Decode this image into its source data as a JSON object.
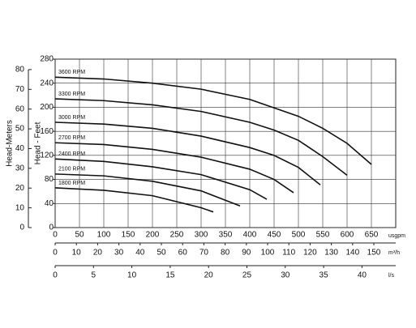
{
  "chart_data": {
    "type": "line",
    "ylabel": "Head - Feet",
    "y2label": "Head-Meters",
    "ylim": [
      0,
      280
    ],
    "yticks": [
      0,
      40,
      80,
      120,
      160,
      200,
      240,
      280
    ],
    "y2lim": [
      0,
      85.3
    ],
    "y2ticks": [
      0,
      10,
      20,
      30,
      40,
      50,
      60,
      70,
      80
    ],
    "xlim": [
      0,
      700
    ],
    "xticks": [
      0,
      50,
      100,
      150,
      200,
      250,
      300,
      350,
      400,
      450,
      500,
      550,
      600,
      650
    ],
    "xunit": "usgpm",
    "x_axes": [
      {
        "unit": "m³/h",
        "xlim": [
          0,
          160.3
        ],
        "xticks": [
          0,
          10,
          20,
          30,
          40,
          50,
          60,
          70,
          80,
          90,
          100,
          110,
          120,
          130,
          140,
          150
        ]
      },
      {
        "unit": "l/s",
        "xlim": [
          0,
          44.4
        ],
        "xticks": [
          0,
          5,
          10,
          15,
          20,
          25,
          30,
          35,
          40
        ]
      }
    ],
    "grid": true,
    "series": [
      {
        "name": "3600 RPM",
        "color": "#111111",
        "x": [
          0,
          100,
          200,
          300,
          400,
          500,
          550,
          600,
          650
        ],
        "values": [
          250,
          247,
          240,
          230,
          213,
          185,
          165,
          140,
          105
        ]
      },
      {
        "name": "3300 RPM",
        "color": "#111111",
        "x": [
          0,
          100,
          200,
          300,
          400,
          450,
          500,
          550,
          600
        ],
        "values": [
          214,
          211,
          204,
          193,
          175,
          162,
          145,
          118,
          87
        ]
      },
      {
        "name": "3000 RPM",
        "color": "#111111",
        "x": [
          0,
          100,
          200,
          300,
          400,
          450,
          500,
          545
        ],
        "values": [
          175,
          172,
          165,
          152,
          133,
          120,
          100,
          71
        ]
      },
      {
        "name": "2700 RPM",
        "color": "#111111",
        "x": [
          0,
          100,
          200,
          300,
          400,
          450,
          490
        ],
        "values": [
          141,
          138,
          130,
          117,
          97,
          80,
          58
        ]
      },
      {
        "name": "2400 RPM",
        "color": "#111111",
        "x": [
          0,
          100,
          200,
          300,
          400,
          435
        ],
        "values": [
          114,
          110,
          101,
          88,
          63,
          47
        ]
      },
      {
        "name": "2100 RPM",
        "color": "#111111",
        "x": [
          0,
          100,
          200,
          300,
          380
        ],
        "values": [
          89,
          86,
          77,
          61,
          36
        ]
      },
      {
        "name": "1800 RPM",
        "color": "#111111",
        "x": [
          0,
          100,
          200,
          300,
          325
        ],
        "values": [
          66,
          62,
          53,
          33,
          26
        ]
      }
    ]
  }
}
